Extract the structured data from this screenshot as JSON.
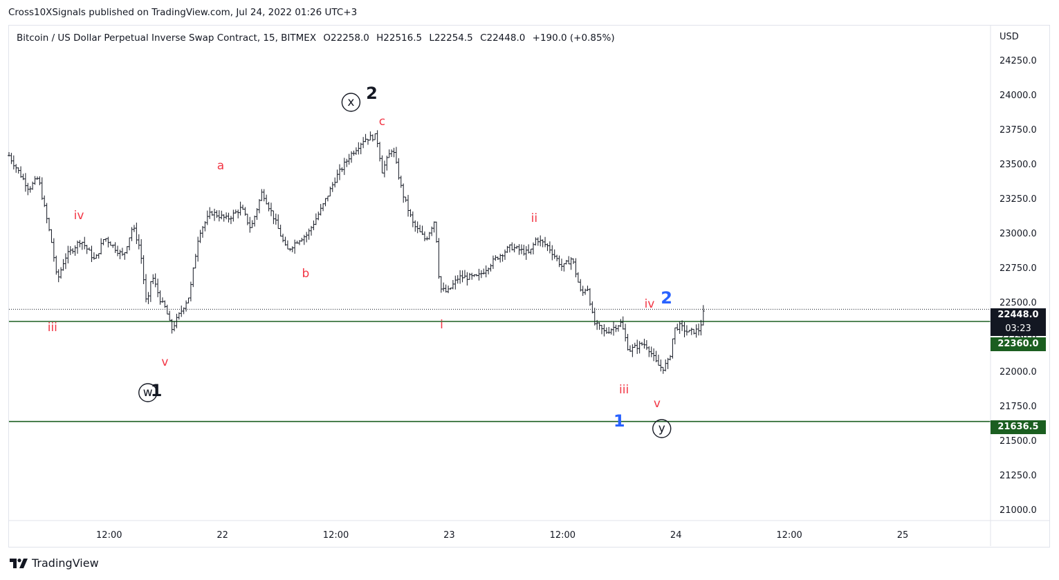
{
  "header": {
    "publisher": "Cross10XSignals published on TradingView.com, Jul 24, 2022 01:26 UTC+3"
  },
  "legend": {
    "symbol": "Bitcoin / US Dollar Perpetual Inverse Swap Contract, 15, BITMEX",
    "open": "O22258.0",
    "high": "H22516.5",
    "low": "L22254.5",
    "close": "C22448.0",
    "change": "+190.0 (+0.85%)"
  },
  "price_axis": {
    "currency": "USD",
    "last_price": "22448.0",
    "countdown": "03:23",
    "level_upper": "22360.0",
    "level_lower": "21636.5"
  },
  "footer": {
    "brand": "TradingView"
  },
  "colors": {
    "candle": "#131722",
    "level_line": "#1b5e20",
    "label_red": "#f23645",
    "label_blue": "#2962ff",
    "label_black": "#131722",
    "last_price_bg": "#131722",
    "level_bg": "#1b5e20"
  },
  "chart_data": {
    "type": "candlestick",
    "interval": "15",
    "ylim": [
      20920,
      24500
    ],
    "yticks": [
      21000,
      21250,
      21500,
      21750,
      22000,
      22250,
      22500,
      22750,
      23000,
      23250,
      23500,
      23750,
      24000,
      24250
    ],
    "ytick_labels": [
      "21000.0",
      "21250.0",
      "21500.0",
      "21750.0",
      "22000.0",
      "22250.0",
      "22500.0",
      "22750.0",
      "23000.0",
      "23250.0",
      "23500.0",
      "23750.0",
      "24000.0",
      "24250.0"
    ],
    "xticks": [
      {
        "label": "12:00",
        "t": 12
      },
      {
        "label": "22",
        "t": 24
      },
      {
        "label": "12:00",
        "t": 36
      },
      {
        "label": "23",
        "t": 48
      },
      {
        "label": "12:00",
        "t": 60
      },
      {
        "label": "24",
        "t": 72
      },
      {
        "label": "12:00",
        "t": 84
      },
      {
        "label": "25",
        "t": 96
      }
    ],
    "x_unit": "hours since Jul 21 00:00",
    "xlim": [
      1.4,
      105.3
    ],
    "price_path": [
      [
        1.4,
        23560
      ],
      [
        3.5,
        23320
      ],
      [
        4.5,
        23400
      ],
      [
        6.0,
        22900
      ],
      [
        6.5,
        22650
      ],
      [
        7.3,
        22820
      ],
      [
        9.0,
        22950
      ],
      [
        10.5,
        22800
      ],
      [
        11.5,
        22970
      ],
      [
        13.5,
        22830
      ],
      [
        14.5,
        23050
      ],
      [
        15.3,
        22880
      ],
      [
        16.0,
        22450
      ],
      [
        16.5,
        22700
      ],
      [
        17.5,
        22500
      ],
      [
        18.0,
        22450
      ],
      [
        18.6,
        22300
      ],
      [
        20.5,
        22550
      ],
      [
        21.5,
        23000
      ],
      [
        22.8,
        23150
      ],
      [
        24.5,
        23100
      ],
      [
        26.0,
        23180
      ],
      [
        27.0,
        23030
      ],
      [
        28.2,
        23300
      ],
      [
        29.5,
        23100
      ],
      [
        30.8,
        22870
      ],
      [
        32.0,
        22950
      ],
      [
        33.0,
        22990
      ],
      [
        34.5,
        23180
      ],
      [
        36.0,
        23400
      ],
      [
        37.5,
        23560
      ],
      [
        39.0,
        23680
      ],
      [
        40.3,
        23700
      ],
      [
        40.9,
        23450
      ],
      [
        42.0,
        23620
      ],
      [
        43.0,
        23300
      ],
      [
        44.2,
        23060
      ],
      [
        45.5,
        22950
      ],
      [
        46.5,
        23100
      ],
      [
        47.0,
        22600
      ],
      [
        47.8,
        22570
      ],
      [
        49.0,
        22680
      ],
      [
        51.0,
        22680
      ],
      [
        53.0,
        22820
      ],
      [
        54.5,
        22900
      ],
      [
        56.5,
        22850
      ],
      [
        57.2,
        22960
      ],
      [
        58.5,
        22900
      ],
      [
        60.0,
        22750
      ],
      [
        61.0,
        22820
      ],
      [
        62.0,
        22550
      ],
      [
        62.6,
        22620
      ],
      [
        63.3,
        22350
      ],
      [
        64.5,
        22280
      ],
      [
        66.2,
        22350
      ],
      [
        67.0,
        22150
      ],
      [
        68.5,
        22200
      ],
      [
        69.0,
        22180
      ],
      [
        70.0,
        22050
      ],
      [
        70.6,
        22020
      ],
      [
        71.3,
        22080
      ],
      [
        71.8,
        22300
      ],
      [
        72.3,
        22330
      ],
      [
        73.3,
        22280
      ],
      [
        74.5,
        22300
      ],
      [
        75.0,
        22448
      ]
    ],
    "levels": [
      {
        "price": 22360.0,
        "style": "solid"
      },
      {
        "price": 21636.5,
        "style": "solid"
      },
      {
        "price": 22448.0,
        "style": "dotted"
      }
    ],
    "wave_labels": [
      {
        "text": "iii",
        "t": 6.0,
        "price": 22290,
        "color": "red"
      },
      {
        "text": "iv",
        "t": 8.8,
        "price": 23100,
        "color": "red"
      },
      {
        "text": "v",
        "t": 17.9,
        "price": 22040,
        "color": "red"
      },
      {
        "text": "w",
        "t": 16.1,
        "price": 21820,
        "color": "black",
        "circled": true
      },
      {
        "text": "1",
        "t": 17.0,
        "price": 21820,
        "color": "black",
        "bold": true
      },
      {
        "text": "a",
        "t": 23.8,
        "price": 23460,
        "color": "red"
      },
      {
        "text": "b",
        "t": 32.8,
        "price": 22680,
        "color": "red"
      },
      {
        "text": "x",
        "t": 37.6,
        "price": 23920,
        "color": "black",
        "circled": true
      },
      {
        "text": "2",
        "t": 39.8,
        "price": 23970,
        "color": "black",
        "bold": true
      },
      {
        "text": "c",
        "t": 40.9,
        "price": 23780,
        "color": "red"
      },
      {
        "text": "i",
        "t": 47.2,
        "price": 22310,
        "color": "red"
      },
      {
        "text": "ii",
        "t": 57.0,
        "price": 23080,
        "color": "red"
      },
      {
        "text": "iv",
        "t": 69.2,
        "price": 22460,
        "color": "red"
      },
      {
        "text": "2",
        "t": 71.0,
        "price": 22490,
        "color": "blue",
        "bold": true
      },
      {
        "text": "iii",
        "t": 66.5,
        "price": 21840,
        "color": "red"
      },
      {
        "text": "v",
        "t": 70.0,
        "price": 21740,
        "color": "red"
      },
      {
        "text": "1",
        "t": 66.0,
        "price": 21600,
        "color": "blue",
        "bold": true
      },
      {
        "text": "y",
        "t": 70.5,
        "price": 21560,
        "color": "black",
        "circled": true
      }
    ]
  }
}
